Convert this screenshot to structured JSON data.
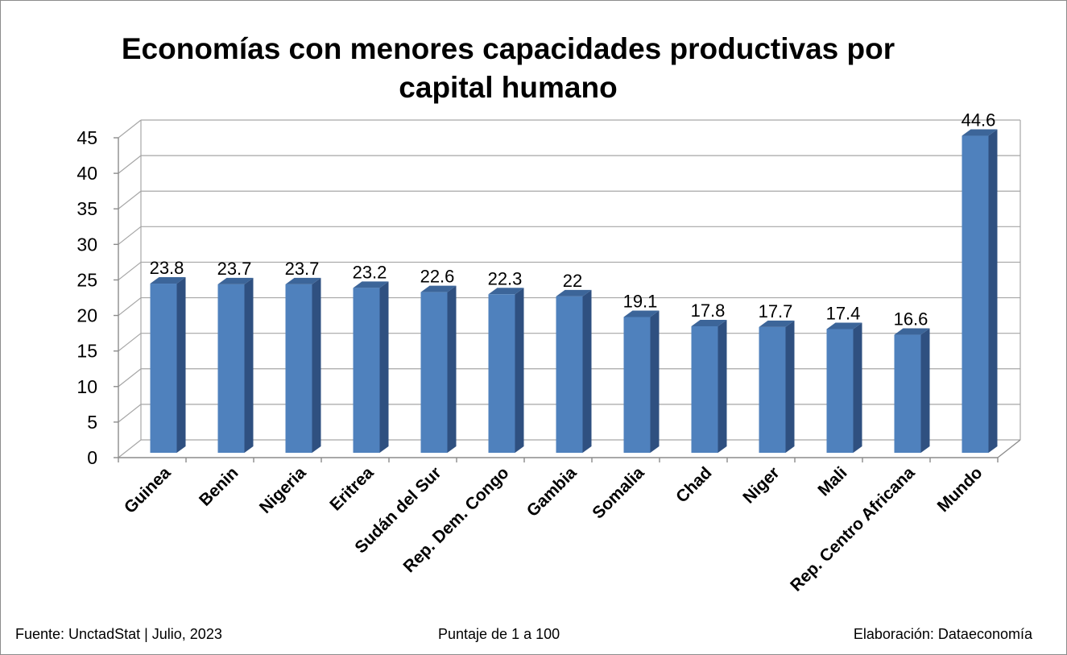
{
  "chart_data": {
    "type": "bar",
    "title": "Economías con menores capacidades productivas por capital humano",
    "categories": [
      "Guinea",
      "Benin",
      "Nigeria",
      "Eritrea",
      "Sudán del Sur",
      "Rep. Dem. Congo",
      "Gambia",
      "Somalia",
      "Chad",
      "Niger",
      "Mali",
      "Rep. Centro Africana",
      "Mundo"
    ],
    "values": [
      23.8,
      23.7,
      23.7,
      23.2,
      22.6,
      22.3,
      22,
      19.1,
      17.8,
      17.7,
      17.4,
      16.6,
      44.6
    ],
    "value_labels": [
      "23.8",
      "23.7",
      "23.7",
      "23.2",
      "22.6",
      "22.3",
      "22",
      "19.1",
      "17.8",
      "17.7",
      "17.4",
      "16.6",
      "44.6"
    ],
    "ylim": [
      0,
      45
    ],
    "yticks": [
      0,
      5,
      10,
      15,
      20,
      25,
      30,
      35,
      40,
      45
    ],
    "grid": true,
    "style": "3d-column",
    "colors": {
      "bar_front": "#4f81bd",
      "bar_side": "#2f5080",
      "bar_top": "#3c6599",
      "grid": "#a6a6a6",
      "axis": "#8c8c8c"
    }
  },
  "footer": {
    "source": "Fuente: UnctadStat | Julio, 2023",
    "units": "Puntaje de 1 a 100",
    "credit": "Elaboración: Dataeconomía"
  }
}
